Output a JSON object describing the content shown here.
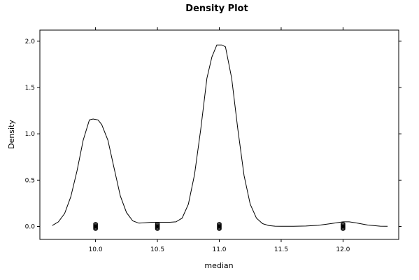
{
  "chart_data": {
    "type": "line",
    "title": "Density Plot",
    "xlabel": "median",
    "ylabel": "Density",
    "xlim": [
      9.55,
      12.45
    ],
    "ylim": [
      -0.14,
      2.12
    ],
    "x_ticks": [
      10.0,
      10.5,
      11.0,
      11.5,
      12.0
    ],
    "x_tick_labels": [
      "10.0",
      "10.5",
      "11.0",
      "11.5",
      "12.0"
    ],
    "y_ticks": [
      0.0,
      0.5,
      1.0,
      1.5,
      2.0
    ],
    "y_tick_labels": [
      "0.0",
      "0.5",
      "1.0",
      "1.5",
      "2.0"
    ],
    "grid": false,
    "series": [
      {
        "x": [
          9.65,
          9.7,
          9.75,
          9.8,
          9.85,
          9.9,
          9.95,
          9.98,
          10.02,
          10.05,
          10.1,
          10.15,
          10.2,
          10.25,
          10.3,
          10.35,
          10.4,
          10.45,
          10.5,
          10.55,
          10.6,
          10.65,
          10.7,
          10.75,
          10.8,
          10.85,
          10.9,
          10.94,
          10.98,
          11.02,
          11.05,
          11.1,
          11.15,
          11.2,
          11.25,
          11.3,
          11.35,
          11.4,
          11.45,
          11.5,
          11.6,
          11.7,
          11.8,
          11.9,
          12.0,
          12.05,
          12.1,
          12.2,
          12.3,
          12.36
        ],
        "y": [
          0.01,
          0.05,
          0.14,
          0.32,
          0.6,
          0.93,
          1.15,
          1.16,
          1.15,
          1.1,
          0.93,
          0.63,
          0.33,
          0.15,
          0.06,
          0.035,
          0.04,
          0.045,
          0.045,
          0.045,
          0.045,
          0.05,
          0.09,
          0.24,
          0.56,
          1.05,
          1.6,
          1.83,
          1.96,
          1.96,
          1.94,
          1.6,
          1.05,
          0.55,
          0.24,
          0.09,
          0.03,
          0.01,
          0.003,
          0.002,
          0.002,
          0.004,
          0.012,
          0.03,
          0.05,
          0.05,
          0.04,
          0.015,
          0.003,
          0.002
        ]
      }
    ],
    "rug_points": [
      {
        "x": 10.0,
        "y": 0.0
      },
      {
        "x": 10.5,
        "y": 0.0
      },
      {
        "x": 11.0,
        "y": 0.0
      },
      {
        "x": 12.0,
        "y": 0.0
      }
    ]
  }
}
